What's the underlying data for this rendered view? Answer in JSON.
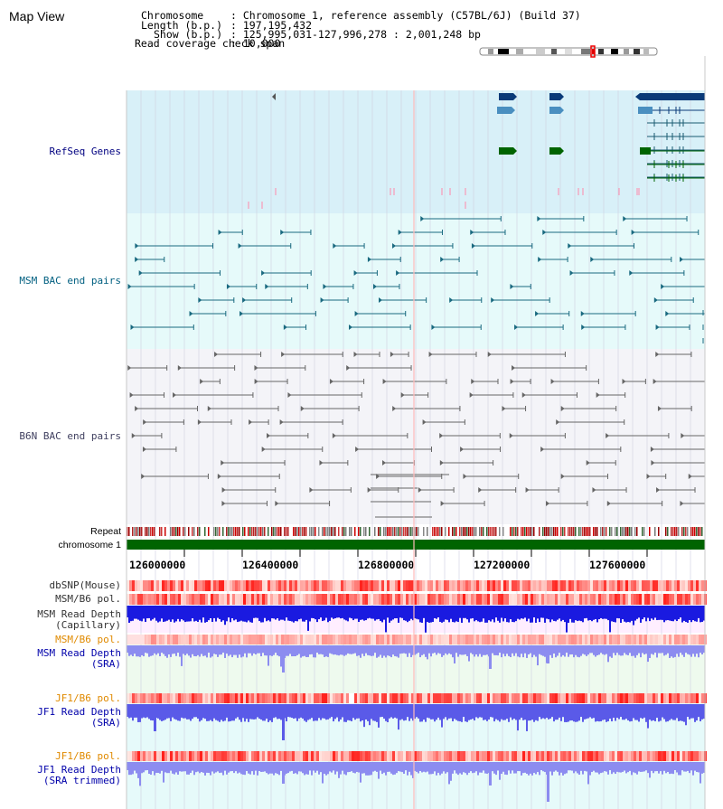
{
  "title": "Map View",
  "info": {
    "chromosome_label": "Chromosome",
    "chromosome_value": ": Chromosome 1, reference assembly (C57BL/6J) (Build 37)",
    "length_label": "Length (b.p.)",
    "length_value": ": 197,195,432",
    "show_label": "Show (b.p.)",
    "show_value": ": 125,995,031-127,996,278 : 2,001,248 bp",
    "coverage_label": "Read coverage check span",
    "coverage_value": ": 10,000"
  },
  "tracks": {
    "refseq": "RefSeq Genes",
    "msm_bac": "MSM BAC end pairs",
    "b6n_bac": "B6N BAC end pairs",
    "repeat": "Repeat",
    "chromosome": "chromosome 1",
    "dbsnp": "dbSNP(Mouse)",
    "msm_pol_1": "MSM/B6 pol.",
    "msm_depth_cap": [
      "MSM Read Depth",
      "(Capillary)"
    ],
    "msm_pol_2": "MSM/B6 pol.",
    "msm_depth_sra": [
      "MSM Read Depth",
      "(SRA)"
    ],
    "jf1_pol_1": "JF1/B6 pol.",
    "jf1_depth_sra": [
      "JF1 Read Depth",
      "(SRA)"
    ],
    "jf1_pol_2": "JF1/B6 pol.",
    "jf1_depth_trim": [
      "JF1 Read Depth",
      "(SRA trimmed)"
    ]
  },
  "axis_ticks": [
    "126000000",
    "126400000",
    "126800000",
    "127200000",
    "127600000"
  ],
  "colors": {
    "label_navy": "#000080",
    "label_teal": "#005f80",
    "label_orange": "#e08a00",
    "chrom_green": "#006400",
    "refseq_bg": "#d8f0f8",
    "msm_bg": "#e6fafa",
    "b6n_bg": "#f4f4f8",
    "depth_blue": "#0000dd",
    "depth_light_blue": "#8c8cf0"
  }
}
